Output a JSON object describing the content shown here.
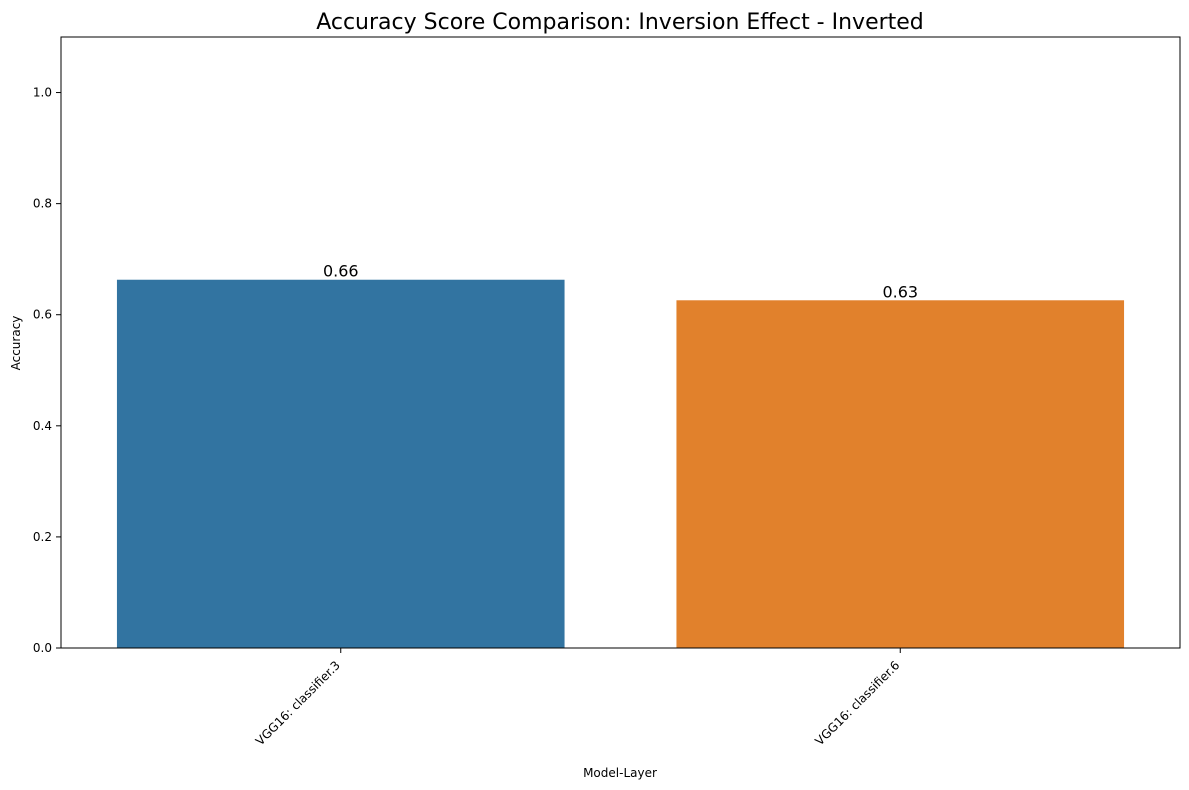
{
  "chart_data": {
    "type": "bar",
    "title": "Accuracy Score Comparison: Inversion Effect - Inverted",
    "xlabel": "Model-Layer",
    "ylabel": "Accuracy",
    "categories": [
      "VGG16: classifier.3",
      "VGG16: classifier.6"
    ],
    "values": [
      0.663,
      0.626
    ],
    "data_labels": [
      "0.66",
      "0.63"
    ],
    "colors": [
      "#3274a1",
      "#e1812c"
    ],
    "ylim": [
      0,
      1.1
    ],
    "yticks": [
      0.0,
      0.2,
      0.4,
      0.6,
      0.8,
      1.0
    ],
    "ytick_labels": [
      "0.0",
      "0.2",
      "0.4",
      "0.6",
      "0.8",
      "1.0"
    ],
    "grid": false,
    "legend": "none"
  }
}
